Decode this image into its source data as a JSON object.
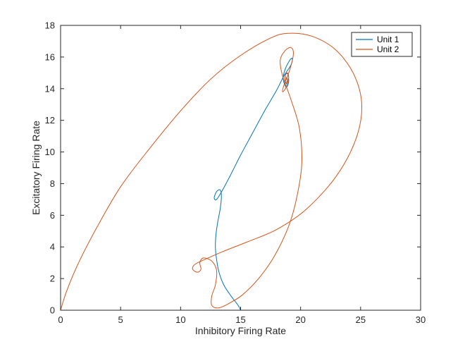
{
  "chart_data": {
    "type": "line",
    "title": "",
    "xlabel": "Inhibitory Firing Rate",
    "ylabel": "Excitatory Firing Rate",
    "xlim": [
      0,
      30
    ],
    "ylim": [
      0,
      18
    ],
    "xticks": [
      0,
      5,
      10,
      15,
      20,
      25,
      30
    ],
    "yticks": [
      0,
      2,
      4,
      6,
      8,
      10,
      12,
      14,
      16,
      18
    ],
    "grid": false,
    "legend_position": "top-right",
    "series": [
      {
        "name": "Unit 1",
        "color": "#0072bd",
        "x": [
          15.0,
          14.8,
          14.2,
          13.6,
          13.2,
          13.0,
          12.9,
          12.95,
          13.1,
          13.3,
          13.4,
          13.3,
          13.0,
          12.8,
          13.0,
          13.5,
          14.2,
          15.0,
          16.0,
          17.0,
          18.0,
          18.6,
          19.2,
          19.3,
          19.1,
          18.7,
          18.55,
          18.8,
          19.0,
          18.95,
          18.75,
          18.7,
          18.85,
          18.9,
          18.8,
          18.85
        ],
        "y": [
          0.0,
          0.3,
          0.9,
          1.6,
          2.4,
          3.2,
          4.0,
          4.8,
          5.6,
          6.4,
          7.2,
          7.6,
          7.5,
          7.1,
          7.0,
          7.6,
          8.6,
          9.8,
          11.2,
          12.6,
          13.9,
          14.8,
          15.5,
          15.9,
          15.8,
          15.2,
          14.6,
          14.1,
          14.4,
          14.9,
          14.9,
          14.5,
          14.3,
          14.6,
          14.7,
          14.6
        ]
      },
      {
        "name": "Unit 2",
        "color": "#d95319",
        "x": [
          0.0,
          0.5,
          1.5,
          3.0,
          5.0,
          7.5,
          10.0,
          12.5,
          15.0,
          17.5,
          19.0,
          21.0,
          23.0,
          24.5,
          25.1,
          24.6,
          23.0,
          20.5,
          18.0,
          15.5,
          13.5,
          12.0,
          11.2,
          11.0,
          11.4,
          11.7,
          11.6,
          11.9,
          12.6,
          13.0,
          12.9,
          12.6,
          12.6,
          13.2,
          14.2,
          15.2,
          16.5,
          17.8,
          19.0,
          19.7,
          20.1,
          19.9,
          19.2,
          18.5,
          18.3,
          18.7,
          19.2,
          19.4,
          19.1,
          18.6,
          18.5,
          18.8,
          19.0,
          18.9,
          18.7,
          18.75,
          18.9,
          18.85,
          18.8,
          18.85
        ],
        "y": [
          0.0,
          1.2,
          3.0,
          5.2,
          7.8,
          10.3,
          12.6,
          14.6,
          16.1,
          17.2,
          17.5,
          17.3,
          16.4,
          14.8,
          12.9,
          10.8,
          8.5,
          6.4,
          5.1,
          4.3,
          3.7,
          3.2,
          2.9,
          2.6,
          2.4,
          2.6,
          3.0,
          3.3,
          3.1,
          2.5,
          1.6,
          0.9,
          0.3,
          0.15,
          0.5,
          1.0,
          2.0,
          3.4,
          5.3,
          7.2,
          9.3,
          11.5,
          13.3,
          14.8,
          15.8,
          16.4,
          16.6,
          16.2,
          15.2,
          14.2,
          13.8,
          14.1,
          14.7,
          15.0,
          14.8,
          14.4,
          14.5,
          14.7,
          14.6,
          14.6
        ]
      }
    ]
  }
}
